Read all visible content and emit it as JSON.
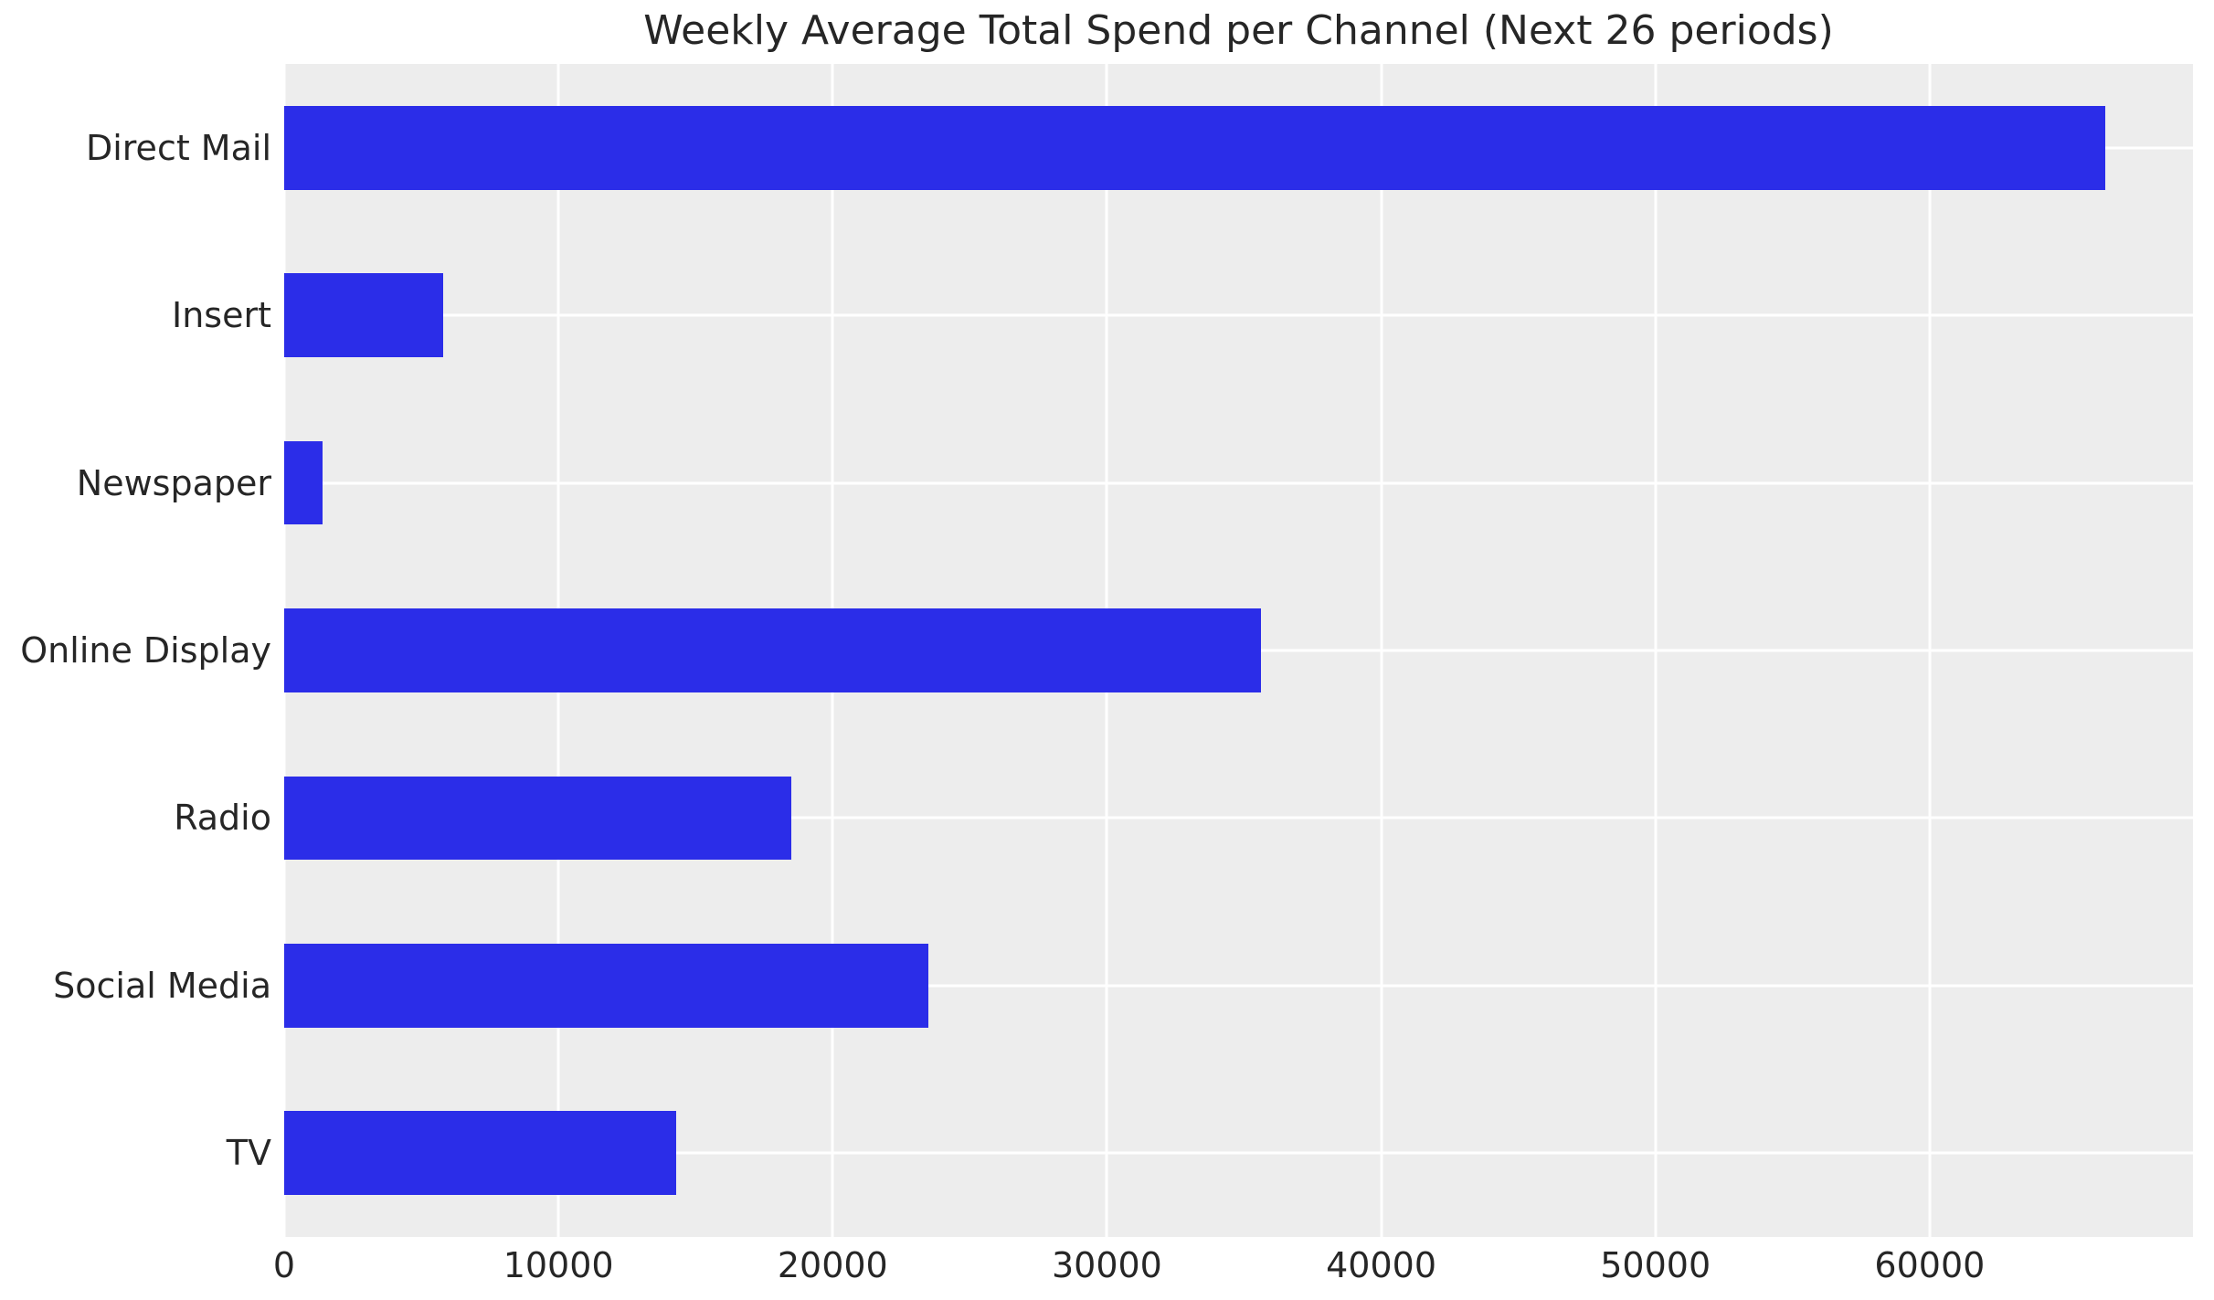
{
  "chart_data": {
    "type": "bar",
    "orientation": "horizontal",
    "title": "Weekly Average Total Spend per Channel (Next 26 periods)",
    "categories": [
      "Direct Mail",
      "Insert",
      "Newspaper",
      "Online Display",
      "Radio",
      "Social Media",
      "TV"
    ],
    "values": [
      66400,
      5800,
      1400,
      35600,
      18500,
      23500,
      14300
    ],
    "xlabel": "",
    "ylabel": "",
    "xlim": [
      0,
      69600
    ],
    "xticks": [
      0,
      10000,
      20000,
      30000,
      40000,
      50000,
      60000
    ],
    "xtick_labels": [
      "0",
      "10000",
      "20000",
      "30000",
      "40000",
      "50000",
      "60000"
    ],
    "grid": true,
    "legend_position": "none",
    "bar_height_frac": 0.5
  },
  "style": {
    "figure_bg": "#ffffff",
    "plot_bg": "#ededed",
    "grid_color": "#ffffff",
    "bar_color": "#2b2de8",
    "text_color": "#262626"
  }
}
